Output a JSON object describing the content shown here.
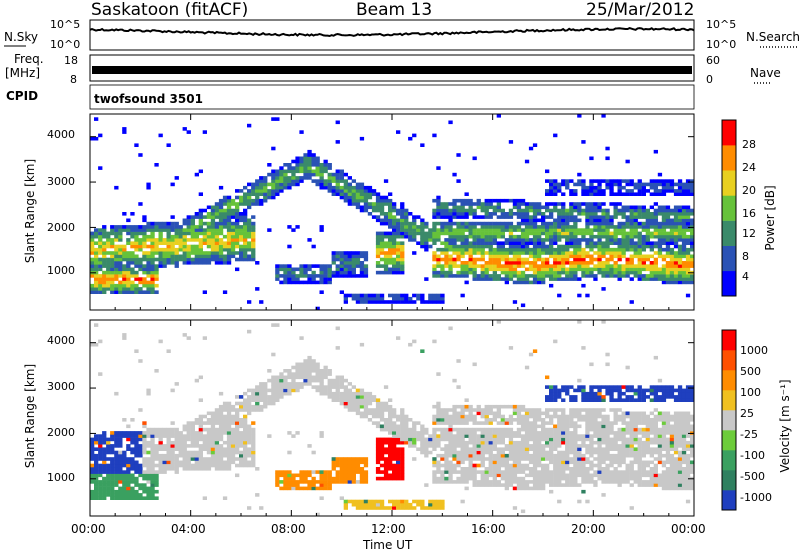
{
  "header": {
    "site": "Saskatoon (fitACF)",
    "beam": "Beam 13",
    "date": "25/Mar/2012"
  },
  "noise_panel": {
    "left_label": "N.Sky",
    "right_label": "N.Search",
    "left_ticks": [
      "10^5",
      "10^0"
    ],
    "right_ticks": [
      "10^5",
      "10^0"
    ]
  },
  "freq_panel": {
    "label_line1": "Freq.",
    "label_line2": "[MHz]",
    "left_ticks": [
      "18",
      "8"
    ],
    "right_ticks": [
      "60",
      "0"
    ],
    "right_label": "Nave"
  },
  "cpid": {
    "label": "CPID",
    "value": "twofsound 3501"
  },
  "power_panel": {
    "ylabel": "Slant Range [km]",
    "yticks": [
      "4000",
      "3000",
      "2000",
      "1000"
    ],
    "colorbar_label": "Power [dB]",
    "colorbar_ticks": [
      "28",
      "24",
      "20",
      "16",
      "12",
      "8",
      "4"
    ],
    "colors": [
      "#0000ff",
      "#2a52b5",
      "#3a8a6a",
      "#66c23a",
      "#e8d020",
      "#ff8c00",
      "#ff0000"
    ]
  },
  "velocity_panel": {
    "ylabel": "Slant Range [km]",
    "yticks": [
      "4000",
      "3000",
      "2000",
      "1000"
    ],
    "colorbar_label": "Velocity [m s⁻¹]",
    "colorbar_ticks": [
      "1000",
      "500",
      "100",
      "25",
      "-25",
      "-100",
      "-500",
      "-1000"
    ],
    "colors": [
      "#1f3fbf",
      "#2f8060",
      "#3aa060",
      "#6ccc3a",
      "#c8c8c8",
      "#f0c020",
      "#ff8c00",
      "#ff5000",
      "#ff0000"
    ]
  },
  "x_axis": {
    "ticks": [
      "00:00",
      "04:00",
      "08:00",
      "12:00",
      "16:00",
      "20:00",
      "00:00"
    ],
    "label": "Time UT"
  },
  "chart_data": {
    "type": "heatmap",
    "title": "Saskatoon (fitACF)",
    "xlabel": "Time UT",
    "ylabel": "Slant Range [km]",
    "xlim": [
      0,
      24
    ],
    "ylim": [
      180,
      4500
    ],
    "power_range_db": [
      0,
      30
    ],
    "velocity_range": [
      -1000,
      1000
    ]
  }
}
